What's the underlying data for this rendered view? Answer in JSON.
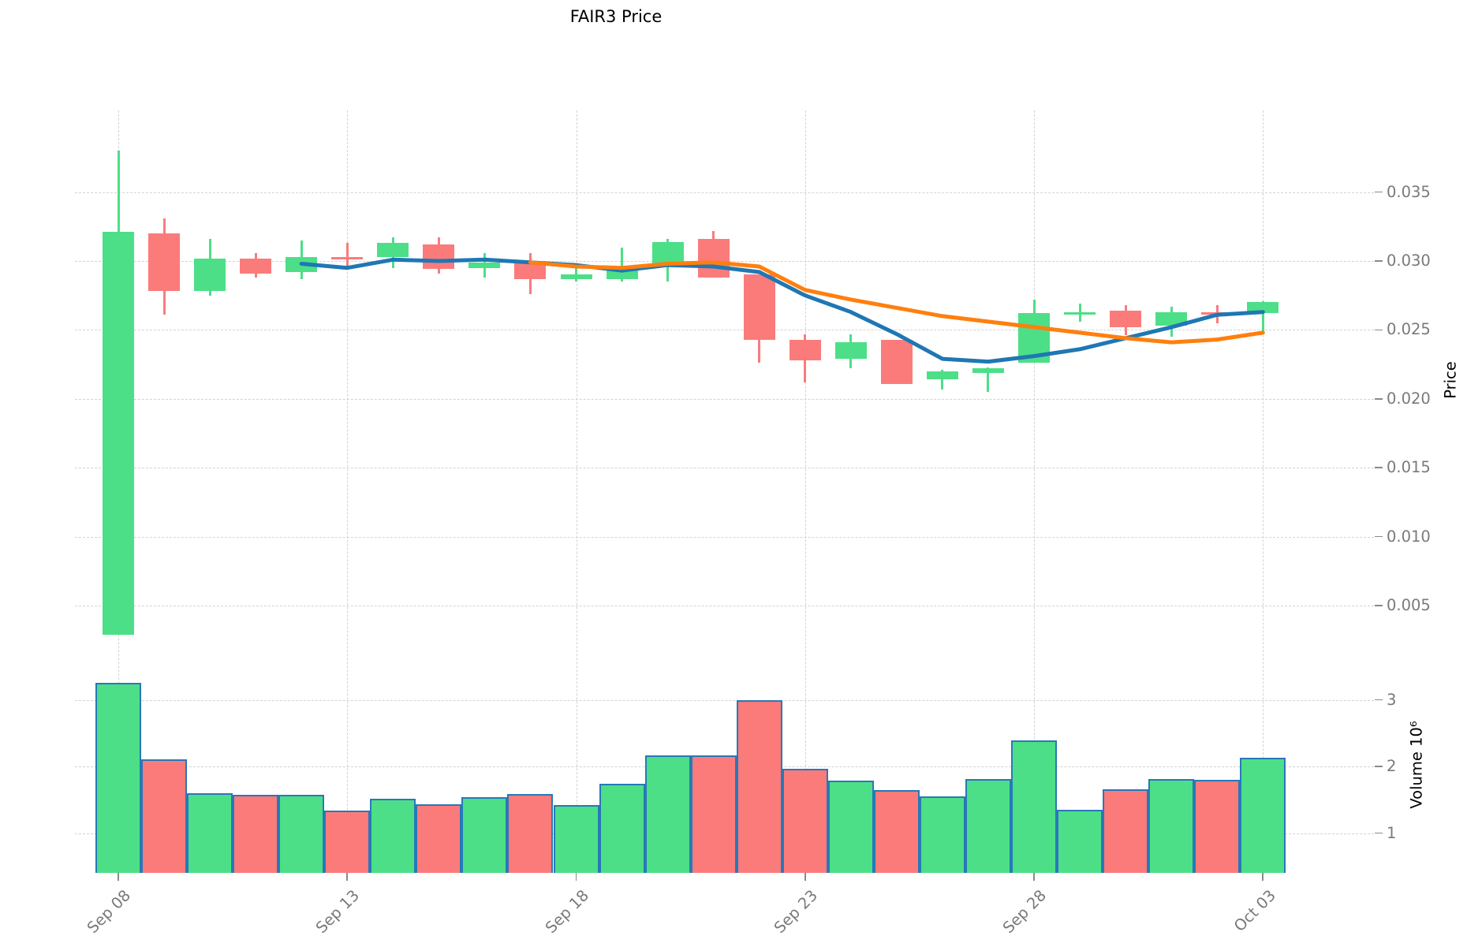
{
  "chart_data": {
    "type": "candlestick",
    "title": "FAIR3 Price",
    "legend": "none",
    "grid": "dashed",
    "x_tick_labels": [
      "Sep 08",
      "Sep 13",
      "Sep 18",
      "Sep 23",
      "Sep 28",
      "Oct 03"
    ],
    "x_tick_indices": [
      0,
      5,
      10,
      15,
      20,
      25
    ],
    "price_axis": {
      "label": "Price",
      "side": "right",
      "tick_labels": [
        "0.035",
        "0.030",
        "0.025",
        "0.020",
        "0.015",
        "0.010",
        "0.005"
      ],
      "tick_values": [
        0.035,
        0.03,
        0.025,
        0.02,
        0.015,
        0.01,
        0.005
      ]
    },
    "volume_axis": {
      "label": "Volume 10⁶",
      "side": "right",
      "tick_labels": [
        "3",
        "2",
        "1"
      ],
      "tick_values": [
        3,
        2,
        1
      ]
    },
    "candles": [
      {
        "date": "Sep 08",
        "open": 0.0029,
        "high": 0.038,
        "low": 0.0029,
        "close": 0.0321,
        "volume_m": 3.26
      },
      {
        "date": "Sep 09",
        "open": 0.032,
        "high": 0.0331,
        "low": 0.0261,
        "close": 0.0278,
        "volume_m": 2.11
      },
      {
        "date": "Sep 10",
        "open": 0.0278,
        "high": 0.0316,
        "low": 0.0275,
        "close": 0.0302,
        "volume_m": 1.6
      },
      {
        "date": "Sep 11",
        "open": 0.0302,
        "high": 0.0306,
        "low": 0.0288,
        "close": 0.0291,
        "volume_m": 1.57
      },
      {
        "date": "Sep 12",
        "open": 0.0292,
        "high": 0.0315,
        "low": 0.0287,
        "close": 0.0303,
        "volume_m": 1.57
      },
      {
        "date": "Sep 13",
        "open": 0.0303,
        "high": 0.0313,
        "low": 0.0296,
        "close": 0.0301,
        "volume_m": 1.34
      },
      {
        "date": "Sep 14",
        "open": 0.0303,
        "high": 0.0317,
        "low": 0.0295,
        "close": 0.0313,
        "volume_m": 1.52
      },
      {
        "date": "Sep 15",
        "open": 0.0312,
        "high": 0.0317,
        "low": 0.0291,
        "close": 0.0294,
        "volume_m": 1.43
      },
      {
        "date": "Sep 16",
        "open": 0.0295,
        "high": 0.0306,
        "low": 0.0288,
        "close": 0.0299,
        "volume_m": 1.54
      },
      {
        "date": "Sep 17",
        "open": 0.0299,
        "high": 0.0306,
        "low": 0.0276,
        "close": 0.0287,
        "volume_m": 1.58
      },
      {
        "date": "Sep 18",
        "open": 0.0287,
        "high": 0.0297,
        "low": 0.0285,
        "close": 0.029,
        "volume_m": 1.42
      },
      {
        "date": "Sep 19",
        "open": 0.0287,
        "high": 0.031,
        "low": 0.0285,
        "close": 0.0293,
        "volume_m": 1.74
      },
      {
        "date": "Sep 20",
        "open": 0.0296,
        "high": 0.0316,
        "low": 0.0285,
        "close": 0.0314,
        "volume_m": 2.16
      },
      {
        "date": "Sep 21",
        "open": 0.0316,
        "high": 0.0322,
        "low": 0.0288,
        "close": 0.0288,
        "volume_m": 2.16
      },
      {
        "date": "Sep 22",
        "open": 0.029,
        "high": 0.029,
        "low": 0.0226,
        "close": 0.0243,
        "volume_m": 3.0
      },
      {
        "date": "Sep 23",
        "open": 0.0243,
        "high": 0.0247,
        "low": 0.0212,
        "close": 0.0228,
        "volume_m": 1.97
      },
      {
        "date": "Sep 24",
        "open": 0.0229,
        "high": 0.0247,
        "low": 0.0222,
        "close": 0.0241,
        "volume_m": 1.79
      },
      {
        "date": "Sep 25",
        "open": 0.0243,
        "high": 0.0243,
        "low": 0.0211,
        "close": 0.0211,
        "volume_m": 1.65
      },
      {
        "date": "Sep 26",
        "open": 0.0214,
        "high": 0.0221,
        "low": 0.0207,
        "close": 0.022,
        "volume_m": 1.55
      },
      {
        "date": "Sep 27",
        "open": 0.0219,
        "high": 0.0223,
        "low": 0.0205,
        "close": 0.0222,
        "volume_m": 1.81
      },
      {
        "date": "Sep 28",
        "open": 0.0226,
        "high": 0.0272,
        "low": 0.0226,
        "close": 0.0262,
        "volume_m": 2.39
      },
      {
        "date": "Sep 29",
        "open": 0.0262,
        "high": 0.0269,
        "low": 0.0256,
        "close": 0.0263,
        "volume_m": 1.35
      },
      {
        "date": "Sep 30",
        "open": 0.0264,
        "high": 0.0268,
        "low": 0.0246,
        "close": 0.0252,
        "volume_m": 1.66
      },
      {
        "date": "Oct 01",
        "open": 0.0253,
        "high": 0.0267,
        "low": 0.0245,
        "close": 0.0263,
        "volume_m": 1.81
      },
      {
        "date": "Oct 02",
        "open": 0.0263,
        "high": 0.0268,
        "low": 0.0255,
        "close": 0.0262,
        "volume_m": 1.8
      },
      {
        "date": "Oct 03",
        "open": 0.0262,
        "high": 0.0271,
        "low": 0.0249,
        "close": 0.027,
        "volume_m": 2.13
      }
    ],
    "ma_fast": {
      "color": "#1f77b4",
      "start_index": 4,
      "values": [
        0.0298,
        0.0295,
        0.0301,
        0.03,
        0.0301,
        0.0299,
        0.0297,
        0.0293,
        0.0297,
        0.0296,
        0.0292,
        0.0275,
        0.0263,
        0.0247,
        0.0229,
        0.0227,
        0.0231,
        0.0236,
        0.0244,
        0.0252,
        0.0261,
        0.0263
      ]
    },
    "ma_slow": {
      "color": "#ff7f0e",
      "start_index": 9,
      "values": [
        0.0299,
        0.0296,
        0.0295,
        0.0298,
        0.0299,
        0.0296,
        0.0279,
        0.0272,
        0.0266,
        0.026,
        0.0256,
        0.0252,
        0.0248,
        0.0244,
        0.0241,
        0.0243,
        0.0248
      ]
    },
    "colors": {
      "up": "#4cdf87",
      "down": "#fb7b7b",
      "volume_bar_edge": "#2878b8",
      "grid": "#d2d2d2",
      "tick_text": "#7a7a7a",
      "axis_title_text": "#000000"
    }
  }
}
